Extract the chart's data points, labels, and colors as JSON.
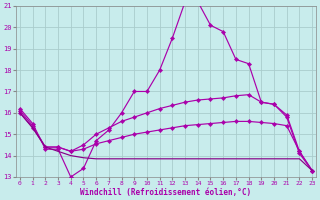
{
  "xlabel": "Windchill (Refroidissement éolien,°C)",
  "bg_color": "#c8ecec",
  "line_color": "#aa00aa",
  "grid_color": "#aacccc",
  "xmin": 0,
  "xmax": 23,
  "ymin": 13,
  "ymax": 21,
  "yticks": [
    13,
    14,
    15,
    16,
    17,
    18,
    19,
    20,
    21
  ],
  "xticks": [
    0,
    1,
    2,
    3,
    4,
    5,
    6,
    7,
    8,
    9,
    10,
    11,
    12,
    13,
    14,
    15,
    16,
    17,
    18,
    19,
    20,
    21,
    22,
    23
  ],
  "line1": [
    16.2,
    15.5,
    14.3,
    14.3,
    13.0,
    13.4,
    14.7,
    15.2,
    16.0,
    17.0,
    17.0,
    18.0,
    19.5,
    21.2,
    21.2,
    20.1,
    19.8,
    18.5,
    18.3,
    16.5,
    16.4,
    15.8,
    14.1,
    13.3
  ],
  "line2": [
    16.1,
    15.4,
    14.4,
    14.4,
    14.2,
    14.5,
    15.0,
    15.3,
    15.6,
    15.8,
    16.0,
    16.2,
    16.35,
    16.5,
    16.6,
    16.65,
    16.7,
    16.8,
    16.85,
    16.5,
    16.4,
    15.9,
    14.2,
    13.3
  ],
  "line3": [
    16.0,
    15.3,
    14.4,
    14.4,
    14.2,
    14.3,
    14.55,
    14.7,
    14.85,
    15.0,
    15.1,
    15.2,
    15.3,
    15.4,
    15.45,
    15.5,
    15.55,
    15.6,
    15.6,
    15.55,
    15.5,
    15.4,
    14.2,
    13.3
  ],
  "line4": [
    16.0,
    15.3,
    14.4,
    14.2,
    14.0,
    13.9,
    13.85,
    13.85,
    13.85,
    13.85,
    13.85,
    13.85,
    13.85,
    13.85,
    13.85,
    13.85,
    13.85,
    13.85,
    13.85,
    13.85,
    13.85,
    13.85,
    13.85,
    13.3
  ]
}
